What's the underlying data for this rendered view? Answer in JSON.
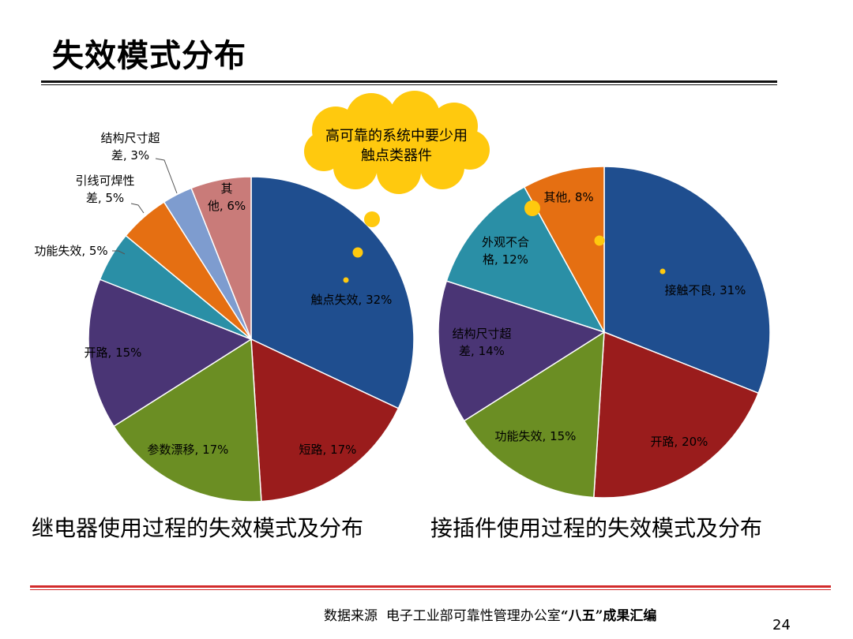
{
  "slide": {
    "title": "失效模式分布",
    "page_number": "24",
    "source_prefix": "数据来源",
    "source_org": "电子工业部可靠性管理办公室",
    "source_quote": "“八五”",
    "source_suffix": "成果汇编"
  },
  "callout": {
    "line1": "高可靠的系统中要少用",
    "line2": "触点类器件"
  },
  "chart_data": [
    {
      "type": "pie",
      "title": "继电器使用过程的失效模式及分布",
      "slices": [
        {
          "label_lines": [
            "触点失效, 32%"
          ],
          "value": 32,
          "color": "#1f4e8f"
        },
        {
          "label_lines": [
            "短路, 17%"
          ],
          "value": 17,
          "color": "#9a1c1c"
        },
        {
          "label_lines": [
            "参数漂移, 17%"
          ],
          "value": 17,
          "color": "#6b8e23"
        },
        {
          "label_lines": [
            "开路, 15%"
          ],
          "value": 15,
          "color": "#4a3575"
        },
        {
          "label_lines": [
            "功能失效, 5%"
          ],
          "value": 5,
          "color": "#2a8fa6"
        },
        {
          "label_lines": [
            "引线可焊性",
            "差, 5%"
          ],
          "value": 5,
          "color": "#e56f12"
        },
        {
          "label_lines": [
            "结构尺寸超",
            "差, 3%"
          ],
          "value": 3,
          "color": "#7e9ccf"
        },
        {
          "label_lines": [
            "其",
            "他, 6%"
          ],
          "value": 6,
          "color": "#c97b79"
        }
      ]
    },
    {
      "type": "pie",
      "title": "接插件使用过程的失效模式及分布",
      "slices": [
        {
          "label_lines": [
            "接触不良, 31%"
          ],
          "value": 31,
          "color": "#1f4e8f"
        },
        {
          "label_lines": [
            "开路, 20%"
          ],
          "value": 20,
          "color": "#9a1c1c"
        },
        {
          "label_lines": [
            "功能失效, 15%"
          ],
          "value": 15,
          "color": "#6b8e23"
        },
        {
          "label_lines": [
            "结构尺寸超",
            "差, 14%"
          ],
          "value": 14,
          "color": "#4a3575"
        },
        {
          "label_lines": [
            "外观不合",
            "格, 12%"
          ],
          "value": 12,
          "color": "#2a8fa6"
        },
        {
          "label_lines": [
            "其他, 8%"
          ],
          "value": 8,
          "color": "#e56f12"
        }
      ]
    }
  ]
}
